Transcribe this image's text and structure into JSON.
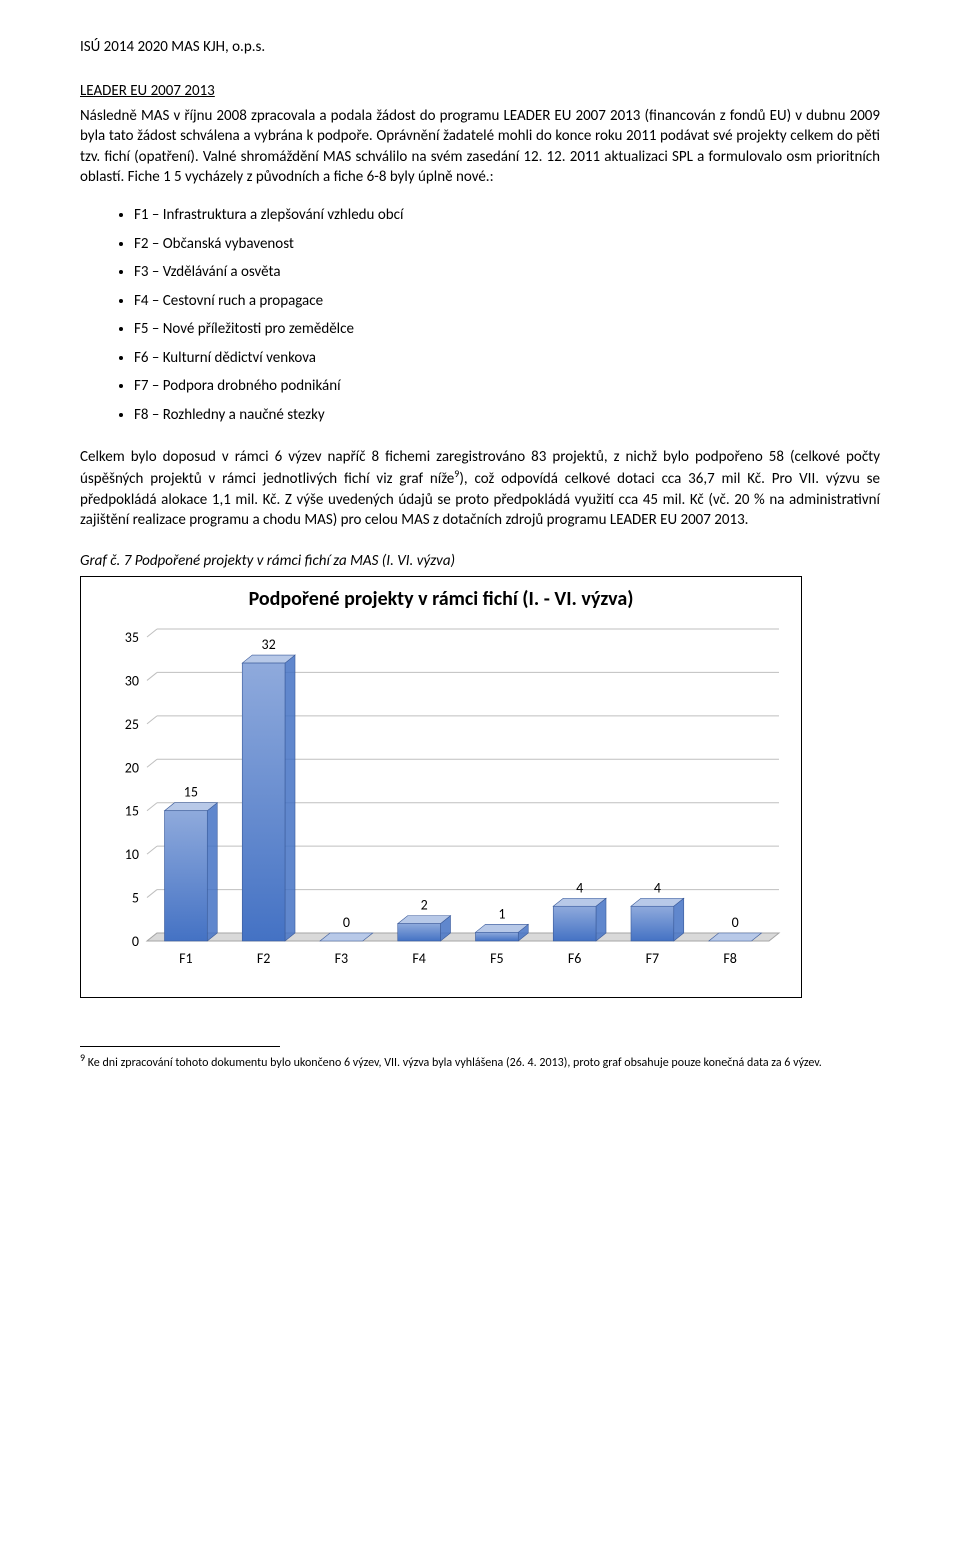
{
  "header": {
    "doc_title": "ISÚ 2014 2020 MAS KJH, o.p.s."
  },
  "section": {
    "title": "LEADER EU 2007 2013"
  },
  "para1": "Následně MAS v říjnu 2008 zpracovala a podala žádost do programu LEADER EU 2007 2013 (financován z fondů EU) v dubnu 2009 byla tato žádost schválena a vybrána k podpoře. Oprávnění žadatelé mohli do konce roku 2011 podávat své projekty celkem do pěti tzv. fichí (opatření). Valné shromáždění MAS schválilo na svém zasedání 12. 12. 2011 aktualizaci SPL a formulovalo osm prioritních oblastí. Fiche 1 5 vycházely z původních a fiche 6-8 byly úplně nové.:",
  "bullets": [
    "F1 – Infrastruktura a zlepšování vzhledu obcí",
    "F2 – Občanská vybavenost",
    "F3 – Vzdělávání a osvěta",
    "F4 – Cestovní ruch a propagace",
    "F5 – Nové příležitosti pro zemědělce",
    "F6 – Kulturní dědictví venkova",
    "F7 – Podpora drobného podnikání",
    "F8 – Rozhledny a naučné stezky"
  ],
  "para2_a": "Celkem bylo doposud v rámci 6 výzev napříč 8 fichemi zaregistrováno 83 projektů, z nichž bylo podpořeno 58 (celkové počty úspěšných projektů v rámci jednotlivých fichí viz graf níže",
  "para2_sup": "9",
  "para2_b": "), což odpovídá celkové dotaci cca 36,7 mil Kč. Pro VII. výzvu se předpokládá alokace 1,1 mil. Kč. Z výše uvedených údajů se proto předpokládá využití cca 45 mil. Kč (vč. 20 % na administrativní zajištění realizace programu a chodu MAS) pro celou MAS z dotačních zdrojů programu LEADER EU 2007 2013.",
  "chart_caption": "Graf č. 7 Podpořené projekty v rámci fichí za MAS (I. VI. výzva)",
  "chart": {
    "type": "bar",
    "title": "Podpořené projekty v rámci fichí (I. - VI. výzva)",
    "title_fontsize": 20,
    "categories": [
      "F1",
      "F2",
      "F3",
      "F4",
      "F5",
      "F6",
      "F7",
      "F8"
    ],
    "values": [
      15,
      32,
      0,
      2,
      1,
      4,
      4,
      0
    ],
    "data_labels": [
      "15",
      "32",
      "0",
      "2",
      "1",
      "4",
      "4",
      "0"
    ],
    "bar_fill_top": "#8faadc",
    "bar_fill_bottom": "#4472c4",
    "bar_border": "#3a5a9a",
    "top_face_fill": "#b8c9e8",
    "ylim": [
      0,
      35
    ],
    "ytick_step": 5,
    "yticks": [
      0,
      5,
      10,
      15,
      20,
      25,
      30,
      35
    ],
    "label_fontsize": 14,
    "tick_fontsize": 14,
    "gridline_color": "#bfbfbf",
    "floor_fill": "#d9d9d9",
    "floor_border": "#a6a6a6",
    "background_color": "#ffffff",
    "bar_width": 0.55,
    "depth_dx": 10,
    "depth_dy": -8
  },
  "footnote": {
    "marker": "9",
    "text": " Ke dni zpracování tohoto dokumentu bylo ukončeno 6 výzev, VII. výzva byla vyhlášena (26. 4. 2013), proto graf obsahuje pouze konečná data za 6 výzev."
  }
}
